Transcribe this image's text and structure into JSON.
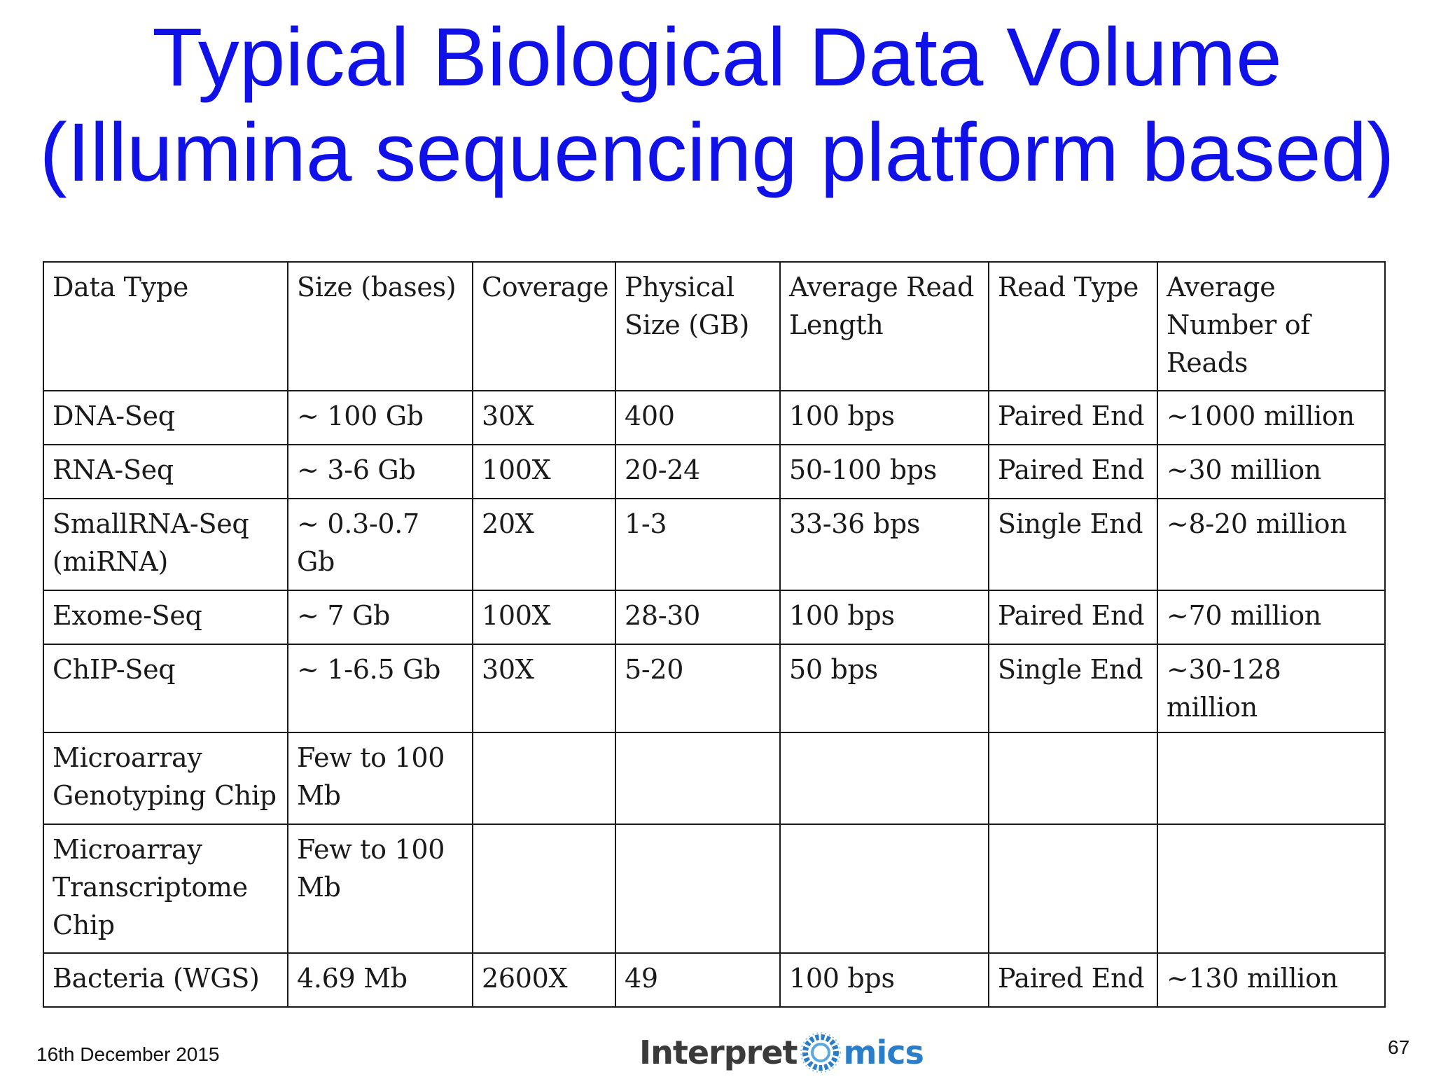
{
  "title": {
    "line1": "Typical Biological Data Volume",
    "line2": "(Illumina sequencing platform based)"
  },
  "table": {
    "headers": [
      "Data Type",
      "Size (bases)",
      "Coverage",
      "Physical Size (GB)",
      "Average Read Length",
      "Read Type",
      "Average Number of Reads"
    ],
    "rows": [
      [
        "DNA-Seq",
        "~ 100 Gb",
        "30X",
        "400",
        "100 bps",
        "Paired End",
        "~1000 million"
      ],
      [
        "RNA-Seq",
        "~ 3-6 Gb",
        "100X",
        "20-24",
        "50-100 bps",
        "Paired End",
        "~30 million"
      ],
      [
        "SmallRNA-Seq (miRNA)",
        "~ 0.3-0.7 Gb",
        "20X",
        "1-3",
        "33-36 bps",
        "Single End",
        "~8-20 million"
      ],
      [
        "Exome-Seq",
        "~ 7 Gb",
        "100X",
        "28-30",
        "100 bps",
        "Paired End",
        "~70 million"
      ],
      [
        "ChIP-Seq",
        "~ 1-6.5 Gb",
        "30X",
        "5-20",
        "50 bps",
        "Single End",
        "~30-128 million"
      ],
      [
        "Microarray Genotyping Chip",
        "Few to 100 Mb",
        "",
        "",
        "",
        "",
        ""
      ],
      [
        "Microarray Transcriptome Chip",
        "Few to 100 Mb",
        "",
        "",
        "",
        "",
        ""
      ],
      [
        "Bacteria (WGS)",
        "4.69 Mb",
        "2600X",
        "49",
        "100 bps",
        "Paired End",
        "~130 million"
      ]
    ]
  },
  "footer": {
    "date": "16th December 2015",
    "page_number": "67",
    "logo_part1": "Interpret",
    "logo_part2": "mics",
    "logo_icon": "omics-ring-logo-icon"
  },
  "colors": {
    "title": "#1010e8",
    "logo_gray": "#3a3a3a",
    "logo_blue": "#2a7ec9"
  }
}
